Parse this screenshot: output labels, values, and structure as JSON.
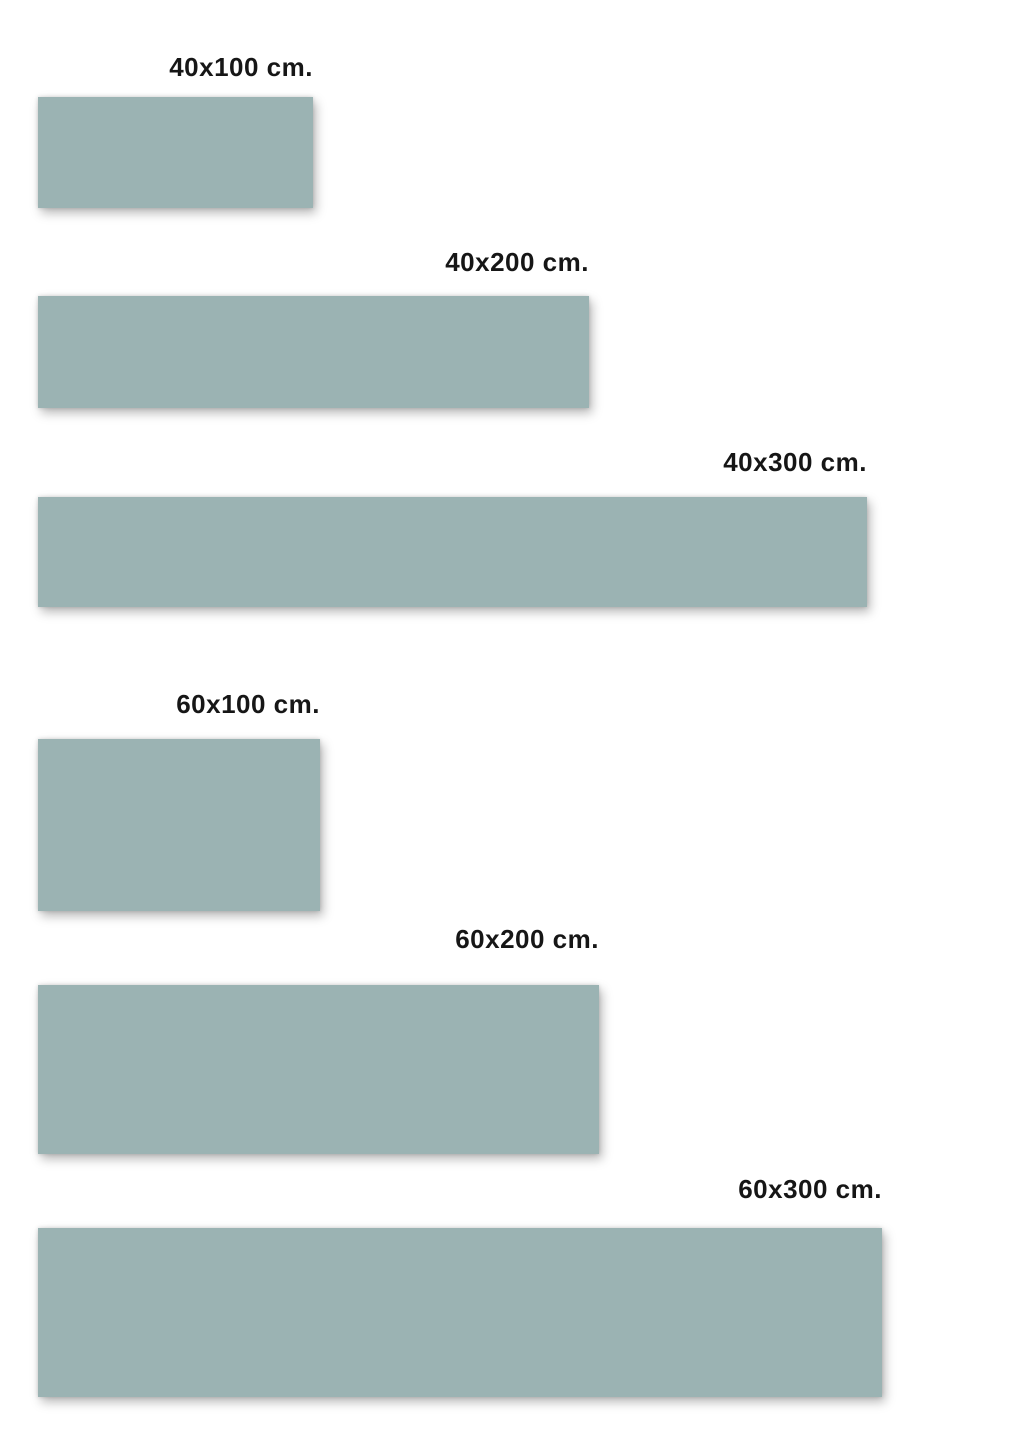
{
  "page": {
    "background_color": "#ffffff",
    "swatch_color": "#9bb3b3",
    "label_color": "#161616"
  },
  "items": [
    {
      "label": "40x100 cm.",
      "width_cm": 100,
      "height_cm": 40
    },
    {
      "label": "40x200 cm.",
      "width_cm": 200,
      "height_cm": 40
    },
    {
      "label": "40x300 cm.",
      "width_cm": 300,
      "height_cm": 40
    },
    {
      "label": "60x100 cm.",
      "width_cm": 100,
      "height_cm": 60
    },
    {
      "label": "60x200 cm.",
      "width_cm": 200,
      "height_cm": 60
    },
    {
      "label": "60x300 cm.",
      "width_cm": 300,
      "height_cm": 60
    }
  ]
}
